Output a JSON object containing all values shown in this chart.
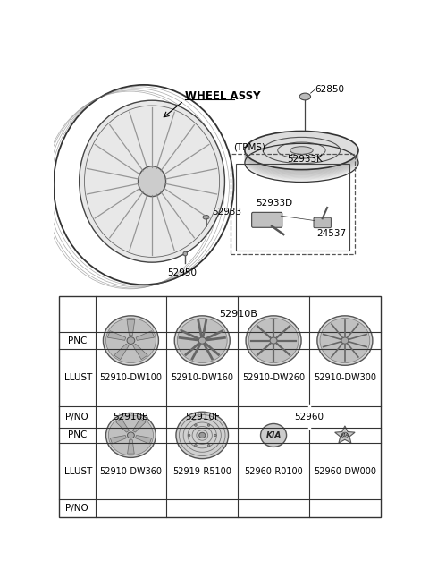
{
  "bg_color": "#ffffff",
  "table": {
    "pnc_row1": "52910B",
    "pnc_row2_cols12": [
      "52910B",
      "52910F"
    ],
    "pnc_row2_cols34": "52960",
    "pno_row1": [
      "52910-DW100",
      "52910-DW160",
      "52910-DW260",
      "52910-DW300"
    ],
    "pno_row2": [
      "52910-DW360",
      "52919-R5100",
      "52960-R0100",
      "52960-DW000"
    ],
    "col_labels": [
      "PNC",
      "ILLUST",
      "P/NO",
      "PNC",
      "ILLUST",
      "P/NO"
    ],
    "label_col": "ILLUST"
  },
  "labels": {
    "wheel_assy": "WHEEL ASSY",
    "part_62850": "62850",
    "part_52933": "52933",
    "part_52950": "52950",
    "tpms": "(TPMS)",
    "part_52933K": "52933K",
    "part_52933D": "52933D",
    "part_24537": "24537"
  },
  "colors": {
    "line": "#333333",
    "face_light": "#e0e0e0",
    "face_mid": "#c8c8c8",
    "face_dark": "#aaaaaa",
    "spoke": "#777777",
    "text": "#000000"
  }
}
